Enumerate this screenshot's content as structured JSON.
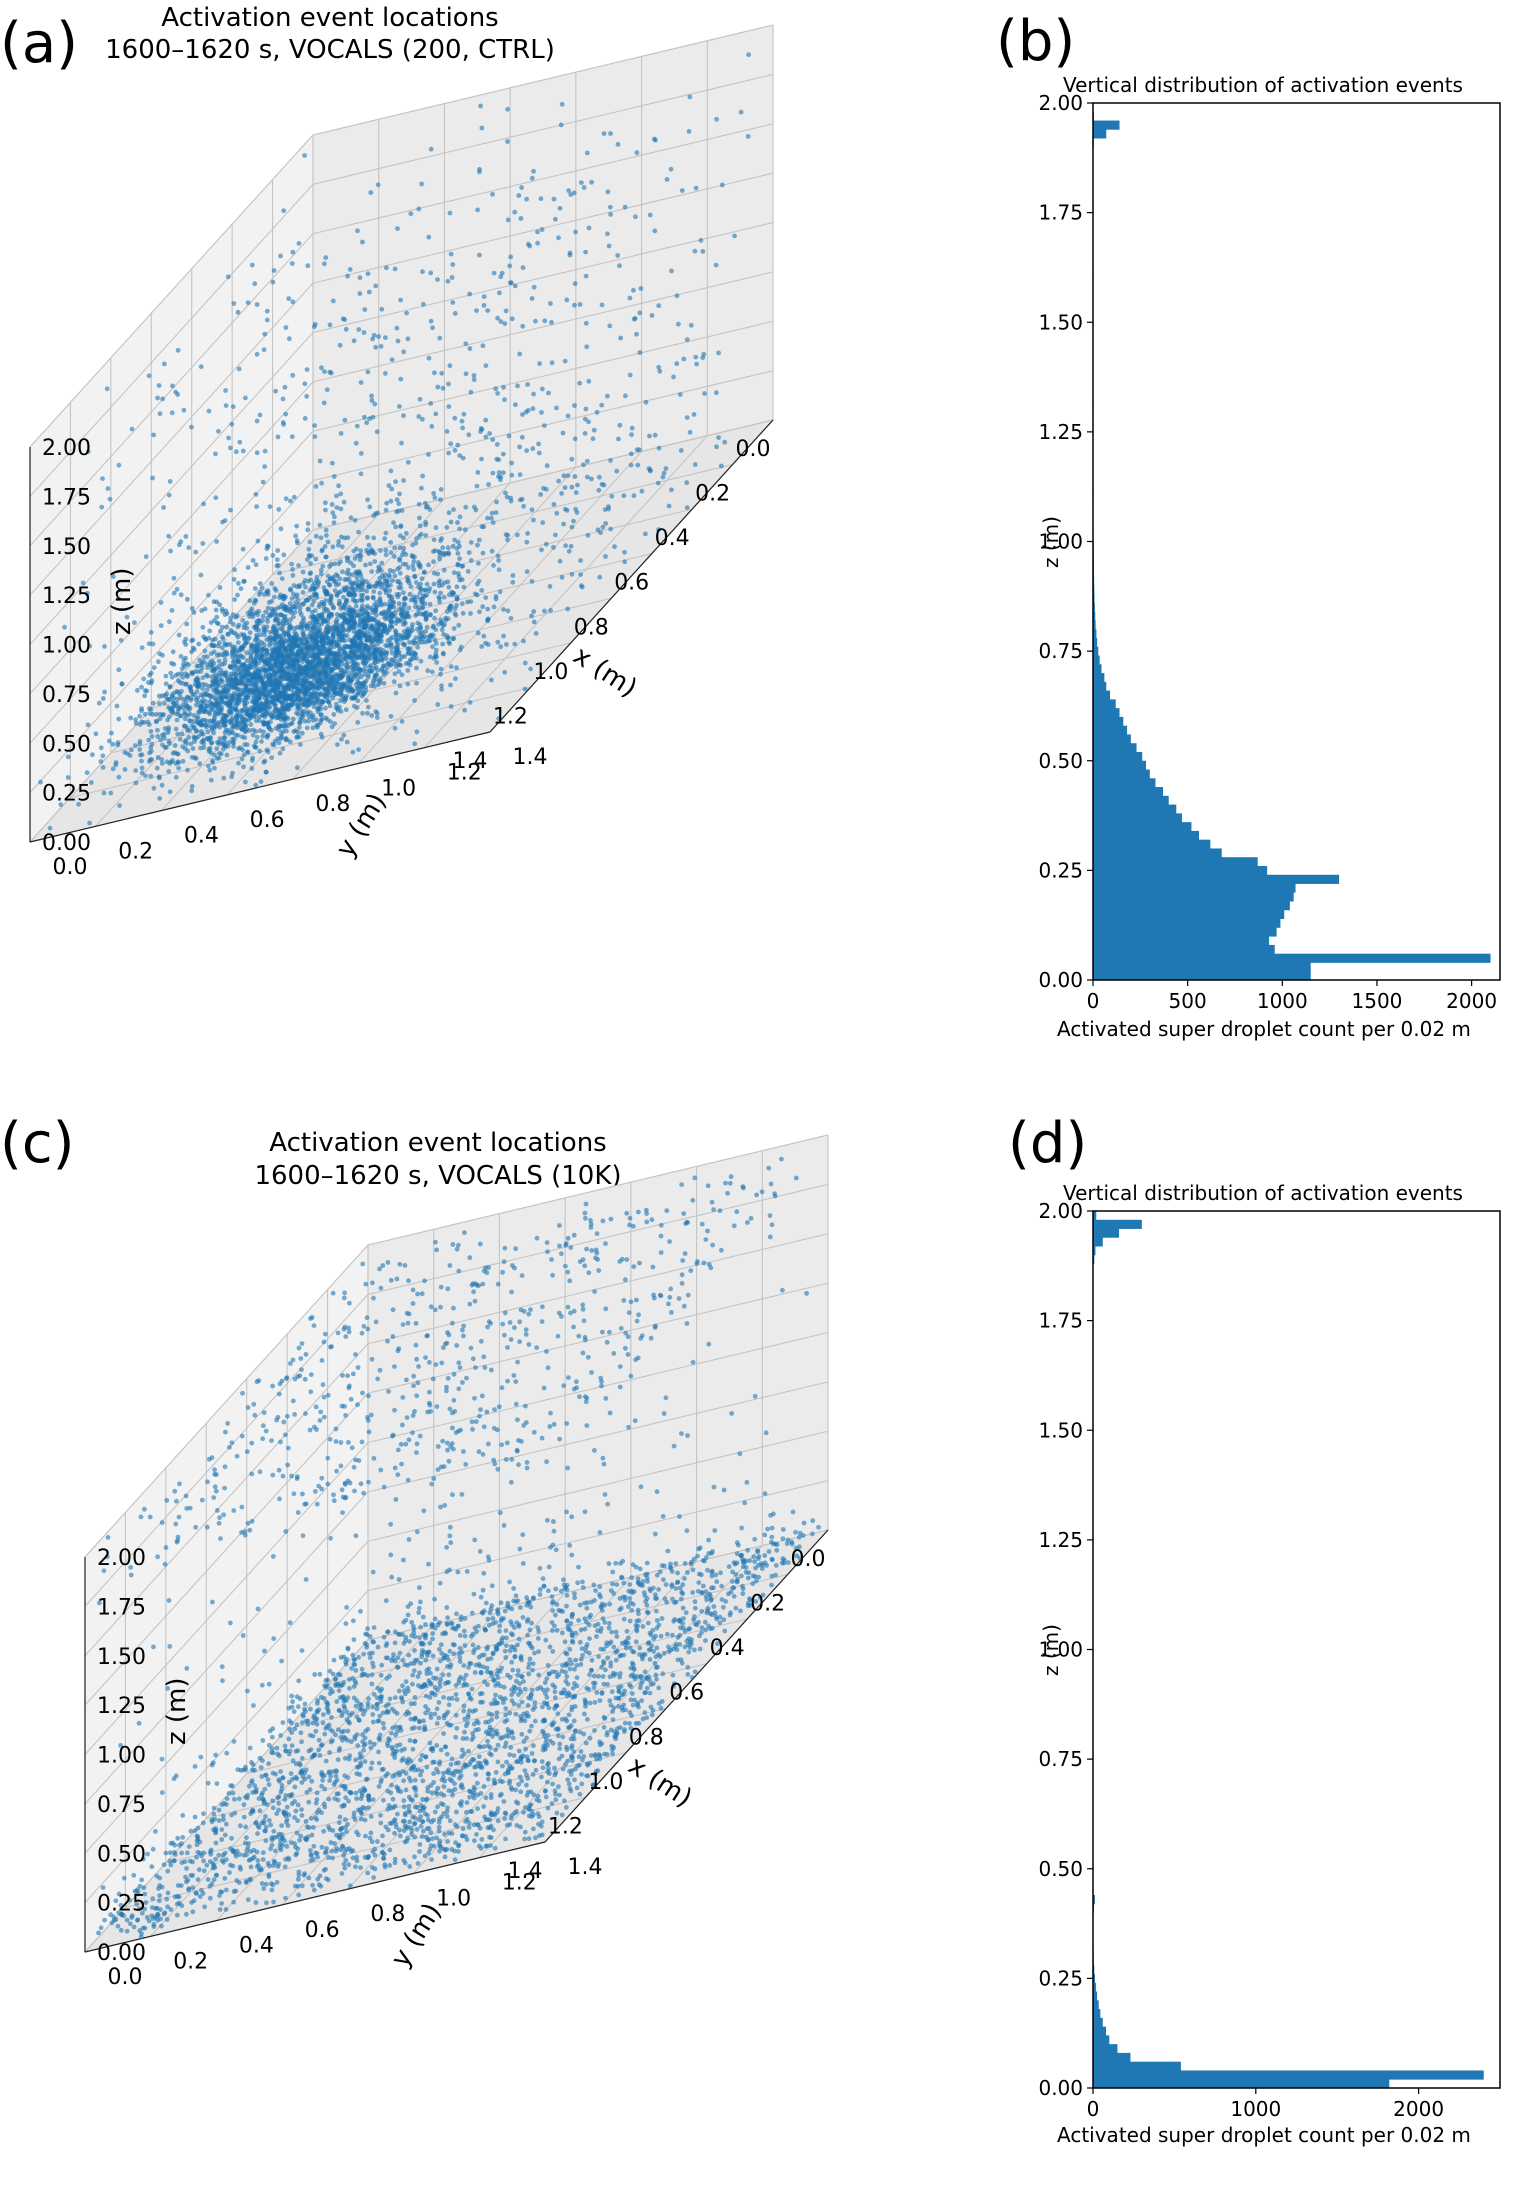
{
  "chart_data": [
    {
      "panel": "(a)",
      "type": "scatter",
      "title": "Activation event locations",
      "subtitle": "1600–1620 s, VOCALS (200, CTRL)",
      "xlabel": "x (m)",
      "ylabel": "y (m)",
      "zlabel": "z (m)",
      "xlim": [
        0,
        1.4
      ],
      "ylim": [
        0,
        1.4
      ],
      "zlim": [
        0,
        2.0
      ],
      "x_ticks": [
        "0.0",
        "0.2",
        "0.4",
        "0.6",
        "0.8",
        "1.0",
        "1.2",
        "1.4"
      ],
      "y_ticks": [
        "0.0",
        "0.2",
        "0.4",
        "0.6",
        "0.8",
        "1.0",
        "1.2",
        "1.4"
      ],
      "z_ticks": [
        "0.00",
        "0.25",
        "0.50",
        "0.75",
        "1.00",
        "1.25",
        "1.50",
        "1.75",
        "2.00"
      ],
      "color": "#1f77b4",
      "grid": true,
      "distribution": "dense cloud concentrated near x≈0.7–1.2 m, y≈0.3–0.9 m, z≈0–0.6 m; sparse events up to z≈2.0 m"
    },
    {
      "panel": "(b)",
      "type": "bar",
      "orientation": "horizontal",
      "title": "Vertical distribution of activation events",
      "xlabel": "Activated super droplet count per 0.02 m",
      "ylabel": "z (m)",
      "xlim": [
        0,
        2150
      ],
      "ylim": [
        0,
        2.0
      ],
      "x_ticks": [
        "0",
        "500",
        "1000",
        "1500",
        "2000"
      ],
      "y_ticks": [
        "0.00",
        "0.25",
        "0.50",
        "0.75",
        "1.00",
        "1.25",
        "1.50",
        "1.75",
        "2.00"
      ],
      "color": "#1f77b4",
      "bin_width": 0.02,
      "bins": [
        {
          "z": 0.0,
          "count": 1150
        },
        {
          "z": 0.02,
          "count": 1150
        },
        {
          "z": 0.04,
          "count": 2100
        },
        {
          "z": 0.06,
          "count": 960
        },
        {
          "z": 0.08,
          "count": 930
        },
        {
          "z": 0.1,
          "count": 970
        },
        {
          "z": 0.12,
          "count": 990
        },
        {
          "z": 0.14,
          "count": 1010
        },
        {
          "z": 0.16,
          "count": 1040
        },
        {
          "z": 0.18,
          "count": 1060
        },
        {
          "z": 0.2,
          "count": 1070
        },
        {
          "z": 0.22,
          "count": 1300
        },
        {
          "z": 0.24,
          "count": 920
        },
        {
          "z": 0.26,
          "count": 870
        },
        {
          "z": 0.28,
          "count": 680
        },
        {
          "z": 0.3,
          "count": 620
        },
        {
          "z": 0.32,
          "count": 560
        },
        {
          "z": 0.34,
          "count": 520
        },
        {
          "z": 0.36,
          "count": 470
        },
        {
          "z": 0.38,
          "count": 440
        },
        {
          "z": 0.4,
          "count": 400
        },
        {
          "z": 0.42,
          "count": 370
        },
        {
          "z": 0.44,
          "count": 330
        },
        {
          "z": 0.46,
          "count": 300
        },
        {
          "z": 0.48,
          "count": 280
        },
        {
          "z": 0.5,
          "count": 260
        },
        {
          "z": 0.52,
          "count": 230
        },
        {
          "z": 0.54,
          "count": 200
        },
        {
          "z": 0.56,
          "count": 180
        },
        {
          "z": 0.58,
          "count": 160
        },
        {
          "z": 0.6,
          "count": 140
        },
        {
          "z": 0.62,
          "count": 120
        },
        {
          "z": 0.64,
          "count": 90
        },
        {
          "z": 0.66,
          "count": 70
        },
        {
          "z": 0.68,
          "count": 60
        },
        {
          "z": 0.7,
          "count": 45
        },
        {
          "z": 0.72,
          "count": 35
        },
        {
          "z": 0.74,
          "count": 28
        },
        {
          "z": 0.76,
          "count": 22
        },
        {
          "z": 0.78,
          "count": 18
        },
        {
          "z": 0.8,
          "count": 14
        },
        {
          "z": 0.82,
          "count": 12
        },
        {
          "z": 0.84,
          "count": 10
        },
        {
          "z": 0.86,
          "count": 8
        },
        {
          "z": 0.88,
          "count": 7
        },
        {
          "z": 0.9,
          "count": 6
        },
        {
          "z": 0.92,
          "count": 5
        },
        {
          "z": 0.94,
          "count": 5
        },
        {
          "z": 0.96,
          "count": 4
        },
        {
          "z": 0.98,
          "count": 4
        },
        {
          "z": 1.0,
          "count": 3
        },
        {
          "z": 1.1,
          "count": 3
        },
        {
          "z": 1.2,
          "count": 2
        },
        {
          "z": 1.3,
          "count": 3
        },
        {
          "z": 1.4,
          "count": 2
        },
        {
          "z": 1.5,
          "count": 2
        },
        {
          "z": 1.6,
          "count": 3
        },
        {
          "z": 1.7,
          "count": 2
        },
        {
          "z": 1.76,
          "count": 3
        },
        {
          "z": 1.84,
          "count": 2
        },
        {
          "z": 1.9,
          "count": 4
        },
        {
          "z": 1.92,
          "count": 70
        },
        {
          "z": 1.94,
          "count": 140
        },
        {
          "z": 1.96,
          "count": 5
        }
      ]
    },
    {
      "panel": "(c)",
      "type": "scatter",
      "title": "Activation event locations",
      "subtitle": "1600–1620 s, VOCALS (10K)",
      "xlabel": "x (m)",
      "ylabel": "y (m)",
      "zlabel": "z (m)",
      "xlim": [
        0,
        1.4
      ],
      "ylim": [
        0,
        1.4
      ],
      "zlim": [
        0,
        2.0
      ],
      "x_ticks": [
        "0.0",
        "0.2",
        "0.4",
        "0.6",
        "0.8",
        "1.0",
        "1.2",
        "1.4"
      ],
      "y_ticks": [
        "0.0",
        "0.2",
        "0.4",
        "0.6",
        "0.8",
        "1.0",
        "1.2",
        "1.4"
      ],
      "z_ticks": [
        "0.00",
        "0.25",
        "0.50",
        "0.75",
        "1.00",
        "1.25",
        "1.50",
        "1.75",
        "2.00"
      ],
      "color": "#1f77b4",
      "grid": true,
      "distribution": "events concentrated near cloud base (z≈0–0.1 m) spread across the domain, plus a layer near the top (z≈1.9–2.0 m)"
    },
    {
      "panel": "(d)",
      "type": "bar",
      "orientation": "horizontal",
      "title": "Vertical distribution of activation events",
      "xlabel": "Activated super droplet count per 0.02 m",
      "ylabel": "z (m)",
      "xlim": [
        0,
        2500
      ],
      "ylim": [
        0,
        2.0
      ],
      "x_ticks": [
        "0",
        "1000",
        "2000"
      ],
      "y_ticks": [
        "0.00",
        "0.25",
        "0.50",
        "0.75",
        "1.00",
        "1.25",
        "1.50",
        "1.75",
        "2.00"
      ],
      "color": "#1f77b4",
      "bin_width": 0.02,
      "bins": [
        {
          "z": 0.0,
          "count": 1820
        },
        {
          "z": 0.02,
          "count": 2400
        },
        {
          "z": 0.04,
          "count": 540
        },
        {
          "z": 0.06,
          "count": 230
        },
        {
          "z": 0.08,
          "count": 150
        },
        {
          "z": 0.1,
          "count": 100
        },
        {
          "z": 0.12,
          "count": 80
        },
        {
          "z": 0.14,
          "count": 60
        },
        {
          "z": 0.16,
          "count": 45
        },
        {
          "z": 0.18,
          "count": 35
        },
        {
          "z": 0.2,
          "count": 25
        },
        {
          "z": 0.22,
          "count": 18
        },
        {
          "z": 0.24,
          "count": 12
        },
        {
          "z": 0.26,
          "count": 8
        },
        {
          "z": 0.28,
          "count": 5
        },
        {
          "z": 0.3,
          "count": 4
        },
        {
          "z": 0.4,
          "count": 6
        },
        {
          "z": 0.42,
          "count": 12
        },
        {
          "z": 1.88,
          "count": 8
        },
        {
          "z": 1.9,
          "count": 15
        },
        {
          "z": 1.92,
          "count": 60
        },
        {
          "z": 1.94,
          "count": 160
        },
        {
          "z": 1.96,
          "count": 300
        },
        {
          "z": 1.98,
          "count": 20
        }
      ]
    }
  ]
}
